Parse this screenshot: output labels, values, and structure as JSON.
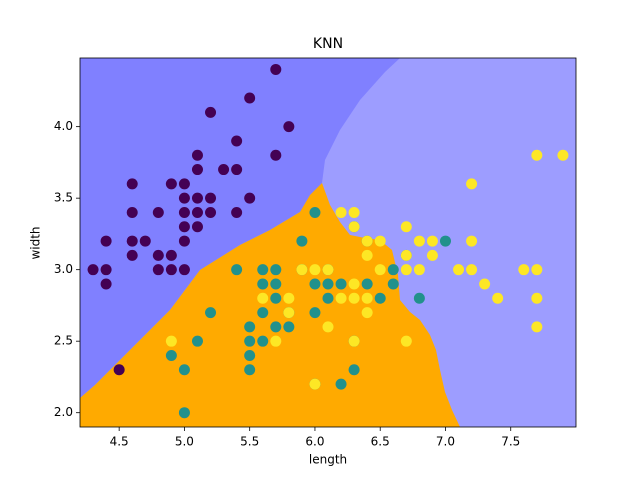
{
  "chart_data": {
    "type": "scatter",
    "title": "KNN",
    "x_label": "length",
    "y_label": "width",
    "xlim": [
      4.2,
      8.0
    ],
    "ylim": [
      1.9,
      4.48
    ],
    "xticks": [
      4.5,
      {
        "value": 5,
        "label": "5.0"
      },
      5.5,
      {
        "value": 6,
        "label": "6.0"
      },
      6.5,
      {
        "value": 7,
        "label": "7.0"
      },
      7.5
    ],
    "yticks": [
      {
        "value": 2,
        "label": "2.0"
      },
      2.5,
      {
        "value": 3,
        "label": "3.0"
      },
      3.5,
      {
        "value": 4,
        "label": "4.0"
      }
    ],
    "grid": false,
    "series": [
      {
        "color": "#440154",
        "x": [
          4.3,
          4.4,
          4.4,
          4.4,
          4.5,
          4.6,
          4.6,
          4.6,
          4.6,
          4.7,
          4.8,
          4.8,
          4.8,
          4.9,
          4.9,
          4.9,
          5.0,
          5.0,
          5.0,
          5.0,
          5.0,
          5.0,
          5.1,
          5.1,
          5.1,
          5.1,
          5.1,
          5.2,
          5.2,
          5.2,
          5.3,
          5.4,
          5.4,
          5.4,
          5.5,
          5.5,
          5.7,
          5.7,
          5.8
        ],
        "values": [
          3.0,
          3.0,
          2.9,
          3.2,
          2.3,
          3.6,
          3.4,
          3.2,
          3.1,
          3.2,
          3.4,
          3.1,
          3.0,
          3.6,
          3.1,
          3.0,
          3.6,
          3.5,
          3.4,
          3.3,
          3.2,
          3.0,
          3.8,
          3.7,
          3.5,
          3.4,
          3.3,
          4.1,
          3.5,
          3.4,
          3.7,
          3.9,
          3.7,
          3.4,
          4.2,
          3.5,
          4.4,
          3.8,
          4.0
        ]
      },
      {
        "color": "#21918c",
        "x": [
          4.9,
          5.0,
          5.0,
          5.1,
          5.2,
          5.4,
          5.5,
          5.5,
          5.5,
          5.5,
          5.6,
          5.6,
          5.6,
          5.6,
          5.7,
          5.7,
          5.7,
          5.7,
          5.8,
          5.8,
          5.9,
          5.9,
          6.0,
          6.0,
          6.0,
          6.0,
          6.1,
          6.1,
          6.1,
          6.2,
          6.2,
          6.3,
          6.3,
          6.3,
          6.4,
          6.4,
          6.5,
          6.6,
          6.6,
          6.7,
          6.8,
          7.0
        ],
        "values": [
          2.4,
          2.0,
          2.3,
          2.5,
          2.7,
          3.0,
          2.3,
          2.4,
          2.5,
          2.6,
          2.5,
          2.7,
          2.9,
          3.0,
          2.6,
          2.8,
          2.9,
          3.0,
          2.6,
          2.7,
          3.2,
          3.0,
          3.4,
          2.2,
          2.7,
          2.9,
          2.8,
          3.0,
          2.9,
          2.2,
          2.9,
          2.3,
          2.5,
          3.3,
          2.9,
          3.2,
          2.8,
          3.0,
          2.9,
          3.1,
          2.8,
          3.2
        ]
      },
      {
        "color": "#fde725",
        "x": [
          4.9,
          5.6,
          5.7,
          5.8,
          5.8,
          5.9,
          6.0,
          6.0,
          6.1,
          6.1,
          6.2,
          6.2,
          6.3,
          6.3,
          6.3,
          6.3,
          6.3,
          6.4,
          6.4,
          6.4,
          6.4,
          6.5,
          6.5,
          6.7,
          6.7,
          6.7,
          6.7,
          6.8,
          6.8,
          6.9,
          6.9,
          7.1,
          7.2,
          7.2,
          7.2,
          7.3,
          7.4,
          7.6,
          7.7,
          7.7,
          7.7,
          7.7,
          7.9
        ],
        "values": [
          2.5,
          2.8,
          2.5,
          2.8,
          2.7,
          3.0,
          2.2,
          3.0,
          3.0,
          2.6,
          3.4,
          2.8,
          3.4,
          3.3,
          2.9,
          2.8,
          2.5,
          3.2,
          3.1,
          2.8,
          2.7,
          3.2,
          3.0,
          3.3,
          3.1,
          3.0,
          2.5,
          3.2,
          3.0,
          3.2,
          3.1,
          3.0,
          3.6,
          3.2,
          3.0,
          2.9,
          2.8,
          3.0,
          3.8,
          3.0,
          2.8,
          2.6,
          3.8
        ]
      }
    ]
  }
}
